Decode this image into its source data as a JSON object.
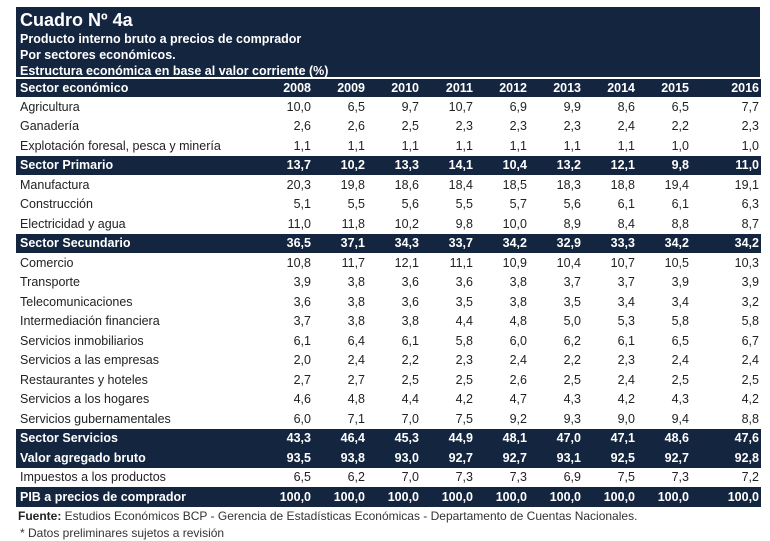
{
  "title": "Cuadro Nº 4a",
  "subtitles": [
    "Producto interno bruto a precios de comprador",
    "Por sectores económicos.",
    "Estructura económica en base al valor corriente (%)"
  ],
  "header": {
    "label": "Sector económico",
    "years": [
      "2008",
      "2009",
      "2010",
      "2011",
      "2012",
      "2013",
      "2014",
      "2015",
      "2016"
    ]
  },
  "rows": [
    {
      "label": "Agricultura",
      "values": [
        "10,0",
        "6,5",
        "9,7",
        "10,7",
        "6,9",
        "9,9",
        "8,6",
        "6,5",
        "7,7"
      ],
      "total": false
    },
    {
      "label": "Ganadería",
      "values": [
        "2,6",
        "2,6",
        "2,5",
        "2,3",
        "2,3",
        "2,3",
        "2,4",
        "2,2",
        "2,3"
      ],
      "total": false
    },
    {
      "label": "Explotación foresal, pesca y minería",
      "values": [
        "1,1",
        "1,1",
        "1,1",
        "1,1",
        "1,1",
        "1,1",
        "1,1",
        "1,0",
        "1,0"
      ],
      "total": false
    },
    {
      "label": "Sector Primario",
      "values": [
        "13,7",
        "10,2",
        "13,3",
        "14,1",
        "10,4",
        "13,2",
        "12,1",
        "9,8",
        "11,0"
      ],
      "total": true
    },
    {
      "label": "Manufactura",
      "values": [
        "20,3",
        "19,8",
        "18,6",
        "18,4",
        "18,5",
        "18,3",
        "18,8",
        "19,4",
        "19,1"
      ],
      "total": false
    },
    {
      "label": "Construcción",
      "values": [
        "5,1",
        "5,5",
        "5,6",
        "5,5",
        "5,7",
        "5,6",
        "6,1",
        "6,1",
        "6,3"
      ],
      "total": false
    },
    {
      "label": "Electricidad y agua",
      "values": [
        "11,0",
        "11,8",
        "10,2",
        "9,8",
        "10,0",
        "8,9",
        "8,4",
        "8,8",
        "8,7"
      ],
      "total": false
    },
    {
      "label": "Sector Secundario",
      "values": [
        "36,5",
        "37,1",
        "34,3",
        "33,7",
        "34,2",
        "32,9",
        "33,3",
        "34,2",
        "34,2"
      ],
      "total": true
    },
    {
      "label": "Comercio",
      "values": [
        "10,8",
        "11,7",
        "12,1",
        "11,1",
        "10,9",
        "10,4",
        "10,7",
        "10,5",
        "10,3"
      ],
      "total": false
    },
    {
      "label": "Transporte",
      "values": [
        "3,9",
        "3,8",
        "3,6",
        "3,6",
        "3,8",
        "3,7",
        "3,7",
        "3,9",
        "3,9"
      ],
      "total": false
    },
    {
      "label": "Telecomunicaciones",
      "values": [
        "3,6",
        "3,8",
        "3,6",
        "3,5",
        "3,8",
        "3,5",
        "3,4",
        "3,4",
        "3,2"
      ],
      "total": false
    },
    {
      "label": "Intermediación financiera",
      "values": [
        "3,7",
        "3,8",
        "3,8",
        "4,4",
        "4,8",
        "5,0",
        "5,3",
        "5,8",
        "5,8"
      ],
      "total": false
    },
    {
      "label": "Servicios inmobiliarios",
      "values": [
        "6,1",
        "6,4",
        "6,1",
        "5,8",
        "6,0",
        "6,2",
        "6,1",
        "6,5",
        "6,7"
      ],
      "total": false
    },
    {
      "label": "Servicios a las empresas",
      "values": [
        "2,0",
        "2,4",
        "2,2",
        "2,3",
        "2,4",
        "2,2",
        "2,3",
        "2,4",
        "2,4"
      ],
      "total": false
    },
    {
      "label": "Restaurantes y hoteles",
      "values": [
        "2,7",
        "2,7",
        "2,5",
        "2,5",
        "2,6",
        "2,5",
        "2,4",
        "2,5",
        "2,5"
      ],
      "total": false
    },
    {
      "label": "Servicios a los hogares",
      "values": [
        "4,6",
        "4,8",
        "4,4",
        "4,2",
        "4,7",
        "4,3",
        "4,2",
        "4,3",
        "4,2"
      ],
      "total": false
    },
    {
      "label": "Servicios gubernamentales",
      "values": [
        "6,0",
        "7,1",
        "7,0",
        "7,5",
        "9,2",
        "9,3",
        "9,0",
        "9,4",
        "8,8"
      ],
      "total": false
    },
    {
      "label": "Sector Servicios",
      "values": [
        "43,3",
        "46,4",
        "45,3",
        "44,9",
        "48,1",
        "47,0",
        "47,1",
        "48,6",
        "47,6"
      ],
      "total": true
    },
    {
      "label": "Valor agregado bruto",
      "values": [
        "93,5",
        "93,8",
        "93,0",
        "92,7",
        "92,7",
        "93,1",
        "92,5",
        "92,7",
        "92,8"
      ],
      "total": true
    },
    {
      "label": "Impuestos a los productos",
      "values": [
        "6,5",
        "6,2",
        "7,0",
        "7,3",
        "7,3",
        "6,9",
        "7,5",
        "7,3",
        "7,2"
      ],
      "total": false
    },
    {
      "label": "PIB a precios de comprador",
      "values": [
        "100,0",
        "100,0",
        "100,0",
        "100,0",
        "100,0",
        "100,0",
        "100,0",
        "100,0",
        "100,0"
      ],
      "total": true
    }
  ],
  "source_label": "Fuente:",
  "source_text": " Estudios Económicos BCP - Gerencia de Estadísticas Económicas - Departamento de Cuentas Nacionales.",
  "note": "* Datos preliminares sujetos a revisión"
}
